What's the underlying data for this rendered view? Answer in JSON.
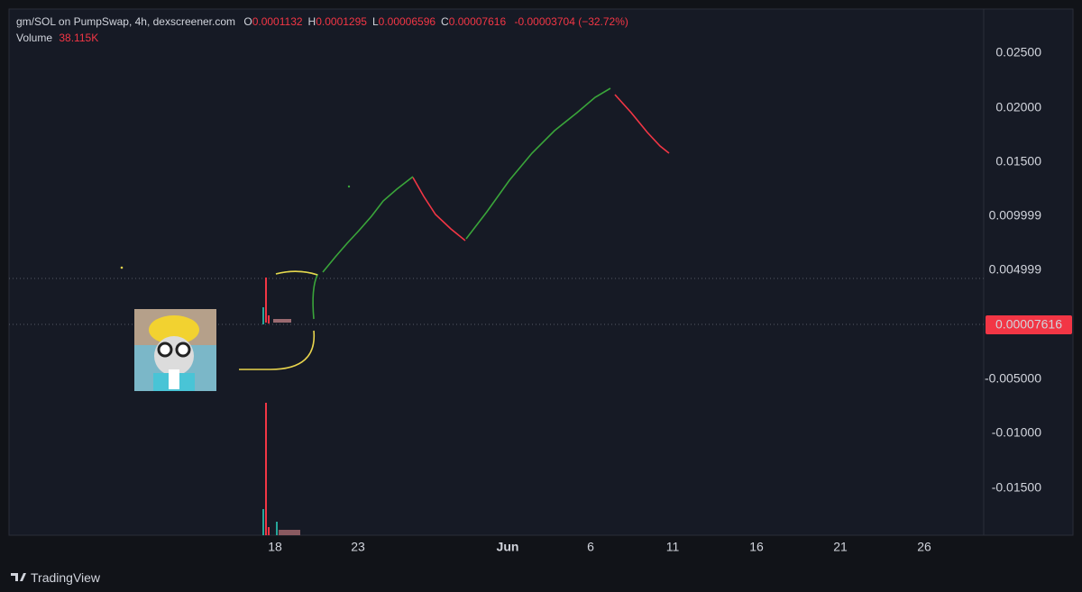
{
  "header": {
    "symbol": "gm/SOL on PumpSwap, 4h, dexscreener.com",
    "ohlc": [
      {
        "key": "O",
        "value": "0.0001132"
      },
      {
        "key": "H",
        "value": "0.0001295"
      },
      {
        "key": "L",
        "value": "0.00006596"
      },
      {
        "key": "C",
        "value": "0.00007616"
      }
    ],
    "change": "-0.00003704 (−32.72%)",
    "volume_label": "Volume",
    "volume_value": "38.115K"
  },
  "price_axis": {
    "labels": [
      "0.02500",
      "0.02000",
      "0.01500",
      "0.009999",
      "0.004999",
      "-0.005000",
      "-0.01000",
      "-0.01500"
    ],
    "current_price": "0.00007616"
  },
  "time_axis": {
    "labels": [
      "18",
      "23",
      "Jun",
      "6",
      "11",
      "16",
      "21",
      "26"
    ]
  },
  "brand": "TradingView"
}
